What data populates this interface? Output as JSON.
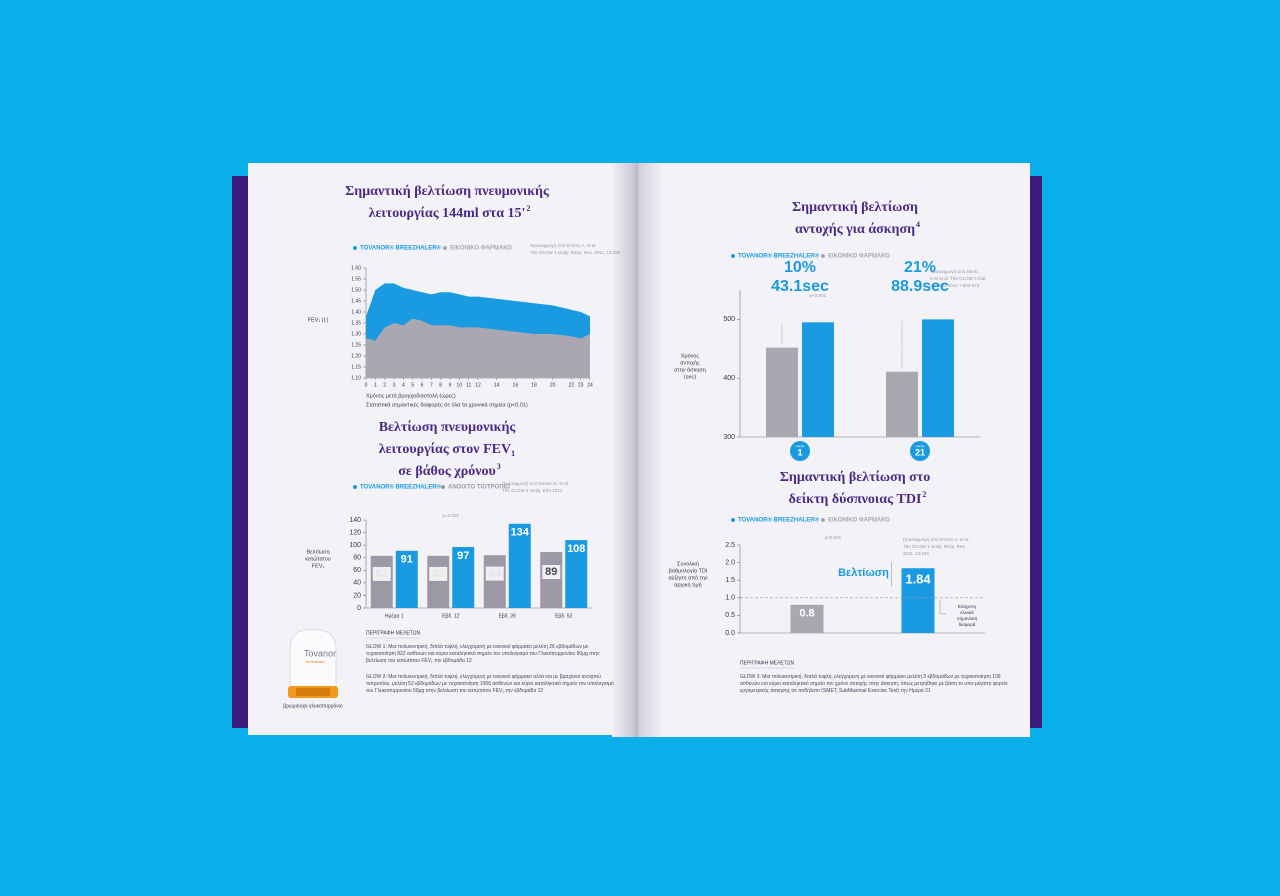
{
  "chart_data": [
    {
      "type": "area",
      "title": [
        "Σημαντική βελτίωση πνευμονικής",
        "λειτουργίας 144ml στα 15'"
      ],
      "title_ref": "2",
      "source": [
        "Προσαρμογή από D'Urzo A. et al.",
        "The GLOW 1 study. Resp. Res. 2011, 12:156"
      ],
      "y_label": "FEV₁ (L)",
      "x_label": "Χρόνος μετά βρογχοδιαστολή (ώρες)",
      "note": "Στατιστικά σημαντικές διαφορές σε όλα τα χρονικά σημεία (p<0.01)",
      "x": [
        0,
        1,
        2,
        3,
        4,
        5,
        6,
        7,
        8,
        9,
        10,
        11,
        12,
        14,
        16,
        18,
        20,
        22,
        23,
        24
      ],
      "xlim": [
        0,
        24
      ],
      "xticks": [
        0,
        1,
        2,
        3,
        4,
        5,
        6,
        7,
        8,
        9,
        10,
        11,
        12,
        14,
        16,
        18,
        20,
        22,
        23,
        24
      ],
      "ylim": [
        1.1,
        1.6
      ],
      "yticks": [
        {
          "value": 1.1,
          "label": "1.10"
        },
        1.15,
        {
          "value": 1.2,
          "label": "1.20"
        },
        1.25,
        {
          "value": 1.3,
          "label": "1.30"
        },
        1.35,
        {
          "value": 1.4,
          "label": "1.40"
        },
        1.45,
        {
          "value": 1.5,
          "label": "1.50"
        },
        1.55,
        {
          "value": 1.6,
          "label": "1.60"
        }
      ],
      "series": [
        {
          "name": "TOVANOR® BREEZHALER®",
          "color": "#1a9ae0",
          "values": [
            1.38,
            1.5,
            1.53,
            1.53,
            1.51,
            1.5,
            1.49,
            1.48,
            1.49,
            1.49,
            1.48,
            1.47,
            1.47,
            1.46,
            1.45,
            1.44,
            1.43,
            1.41,
            1.4,
            1.38
          ]
        },
        {
          "name": "ΕΙΚΟΝΙΚΟ ΦΑΡΜΑΚΟ",
          "color": "#aaa6b2",
          "values": [
            1.28,
            1.27,
            1.33,
            1.35,
            1.34,
            1.37,
            1.36,
            1.34,
            1.34,
            1.34,
            1.33,
            1.33,
            1.33,
            1.32,
            1.31,
            1.3,
            1.3,
            1.29,
            1.28,
            1.3
          ]
        }
      ]
    },
    {
      "type": "bar",
      "title": [
        "Βελτίωση πνευμονικής",
        "λειτουργίας στον FEV₁",
        "σε βάθος χρόνου"
      ],
      "title_ref": "3",
      "source": [
        "Προσαρμογή από Kerwin E. et al.",
        "The GLOW 2 study. ERJ 2012"
      ],
      "y_label": [
        "Βελτίωση",
        "κατώτατου",
        "FEV₁"
      ],
      "annotation": "p=0.002",
      "show_values": true,
      "categories": [
        "Ημέρα 1",
        "Εβδ. 12",
        "Εβδ. 26",
        "Εβδ. 52"
      ],
      "ylim": [
        0,
        140
      ],
      "yticks": [
        0,
        20,
        40,
        60,
        80,
        100,
        120,
        140
      ],
      "series": [
        {
          "name": "ΑΝΟΙΧΤΟ ΤΙΟΤΡΟΠΙΟ",
          "color": "#9c98a6",
          "values": [
            83,
            83,
            84,
            89
          ]
        },
        {
          "name": "TOVANOR® BREEZHALER®",
          "color": "#1a9ae0",
          "values": [
            91,
            97,
            134,
            108
          ]
        }
      ]
    },
    {
      "type": "bar",
      "title": [
        "Σημαντική βελτίωση",
        "αντοχής για άσκηση"
      ],
      "title_ref": "4",
      "source": [
        "Προσαρμογή από Beeh,",
        "K.M et al. The GLOW 3 trial.",
        "J COPD 2012 7:503-513"
      ],
      "y_label": [
        "Χρόνος",
        "αντοχής",
        "στην άσκηση",
        "(sec)"
      ],
      "annotation": "p<0.001",
      "day_label": "Ημέρα",
      "group_labels": [
        [
          "10%",
          "43.1sec"
        ],
        [
          "21%",
          "88.9sec"
        ]
      ],
      "categories": [
        "1",
        "21"
      ],
      "ylim": [
        300,
        550
      ],
      "yticks": [
        300,
        400,
        500
      ],
      "series": [
        {
          "name": "ΕΙΚΟΝΙΚΟ ΦΑΡΜΑΚΟ",
          "color": "#aaa6b2",
          "values": [
            452,
            411
          ]
        },
        {
          "name": "TOVANOR® BREEZHALER®",
          "color": "#1a9ae0",
          "values": [
            495,
            500
          ]
        }
      ]
    },
    {
      "type": "bar",
      "title": [
        "Σημαντική βελτίωση στο",
        "δείκτη δύσπνοιας TDI"
      ],
      "title_ref": "2",
      "source": [
        "Προσαρμογή από D'Urzo A. et al.",
        "The GLOW 1 study. Resp. Res.",
        "2011, 12:156"
      ],
      "y_label": [
        "Συνολική",
        "βαθμολογία TDI",
        "αύξηση από την",
        "αρχική τιμή"
      ],
      "annotation": "p<0.001",
      "show_values": true,
      "improvement_label": "Βελτίωση",
      "threshold": 1,
      "threshold_label": [
        "Ελάχιστη",
        "κλινικά",
        "σημαντική",
        "διαφορά"
      ],
      "categories": [
        null
      ],
      "ylim": [
        0,
        2.5
      ],
      "yticks": [
        {
          "value": 0,
          "label": "0.0"
        },
        0.5,
        {
          "value": 1,
          "label": "1.0"
        },
        1.5,
        {
          "value": 2,
          "label": "2.0"
        },
        2.5
      ],
      "series": [
        {
          "name": "ΕΙΚΟΝΙΚΟ ΦΑΡΜΑΚΟ",
          "color": "#aaa6b2",
          "values": [
            0.8
          ]
        },
        {
          "name": "TOVANOR® BREEZHALER®",
          "color": "#1a9ae0",
          "values": [
            1.84
          ]
        }
      ]
    }
  ],
  "studies": {
    "heading_left": "ΠΕΡΙΓΡΑΦΗ ΜΕΛΕΤΩΝ",
    "heading_right": "ΠΕΡΙΓΡΑΦΗ ΜΕΛΕΤΩΝ",
    "left": [
      "GLOW 1: Μια πολυκεντρική, διπλά τυφλή, ελεγχόμενη με εικονικό φάρμακο μελέτη 26 εβδομάδων με τυχαιοποίηση 822 ασθενών και κύριο καταληκτικό σημείο τον υπολογισμό του Γλυκοπυρρονίου 50μg στην βελτίωση του κατώτατου FEV₁ την εβδομάδα 12",
      "GLOW 2: Μια πολυκεντρική, διπλά τυφλή, ελεγχόμενη με εικονικό φάρμακο αλλά και με βραχίονα ανοιχτού τιοτροπίου, μελέτη 52 εβδομάδων με τυχαιοποίηση 1066 ασθενών και κύριο καταληκτικό σημείο τον υπολογισμό του Γλυκοπυρρονίου 50μg στην βελτίωση του κατώτατου FEV₁ την εβδομάδα 12"
    ],
    "right": [
      "GLOW 3: Μια πολυκεντρική, διπλά τυφλή, ελεγχόμενη με εικονικό φάρμακο μελέτη 3 εβδομάδων με τυχαιοποίηση 109 ασθενών και κύριο καταληκτικό σημείο τον χρόνο αντοχής στην άσκηση, όπως μετρήθηκε με βάση το υπο-μέγιστο φορτίο εργομετρικής άσκησης σε ποδήλατο (SMET, SubMaximal Exercise Test) την Ημέρα 21"
    ]
  },
  "product": {
    "brand": "Tovanor",
    "sub": "breezhaler",
    "caption": "βρωμιούχο γλυκοπυρρόνιο"
  }
}
